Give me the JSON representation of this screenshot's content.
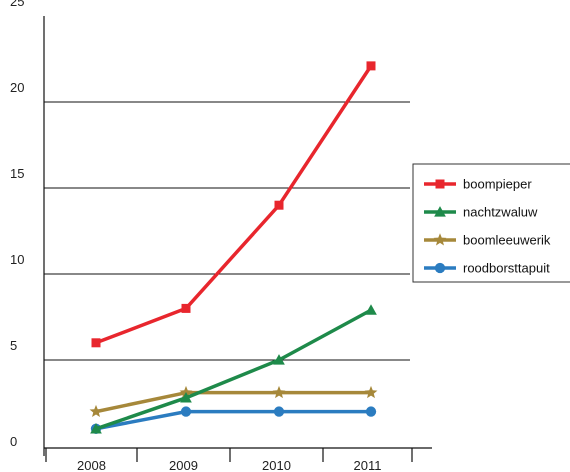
{
  "chart_data": {
    "type": "line",
    "categories": [
      "2008",
      "2009",
      "2010",
      "2011"
    ],
    "ylim": [
      0,
      25
    ],
    "yticks": [
      "0",
      "5",
      "10",
      "15",
      "20",
      "25"
    ],
    "grid": "horizontal",
    "legend_position": "right",
    "series": [
      {
        "name": "boompieper",
        "values": [
          6,
          8,
          14,
          22.1
        ],
        "color": "#e8262d",
        "marker": "square"
      },
      {
        "name": "nachtzwaluw",
        "values": [
          1,
          2.8,
          5,
          7.9
        ],
        "color": "#1e8a4a",
        "marker": "triangle"
      },
      {
        "name": "boomleeuwerik",
        "values": [
          2,
          3.1,
          3.1,
          3.1
        ],
        "color": "#a6883a",
        "marker": "star"
      },
      {
        "name": "roodborsttapuit",
        "values": [
          1,
          2,
          2,
          2
        ],
        "color": "#2b7cc0",
        "marker": "circle"
      }
    ]
  }
}
